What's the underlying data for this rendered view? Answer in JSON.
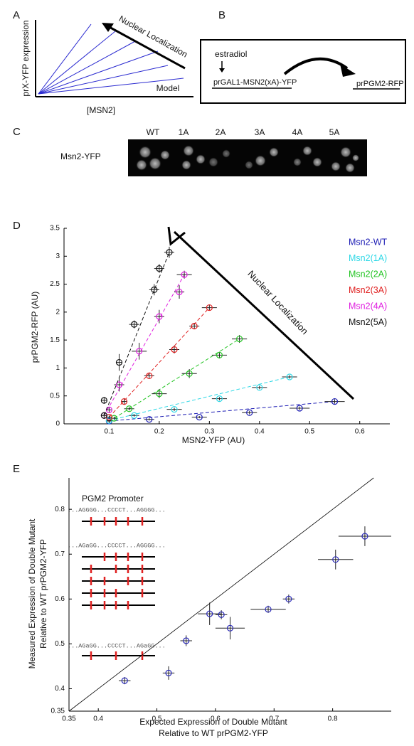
{
  "panel_a": {
    "label": "A",
    "y_label": "prX-YFP expression",
    "x_label": "[MSN2]",
    "arrow_label": "Nuclear Localization",
    "model_label": "Model"
  },
  "panel_b": {
    "label": "B",
    "inducer": "estradiol",
    "construct": "prGAL1-MSN2(xA)-YFP",
    "reporter": "prPGM2-RFP"
  },
  "panel_c": {
    "label": "C",
    "row_label": "Msn2-YFP",
    "columns": [
      "WT",
      "1A",
      "2A",
      "3A",
      "4A",
      "5A"
    ]
  },
  "chart_data": [
    {
      "type": "scatter",
      "panel_label": "D",
      "x_label": "MSN2-YFP (AU)",
      "y_label": "prPGM2-RFP (AU)",
      "annotation": "Nuclear Localization",
      "xlim": [
        0.01,
        0.66
      ],
      "ylim": [
        0,
        3.5
      ],
      "xticks": [
        0.1,
        0.2,
        0.3,
        0.4,
        0.5,
        0.6
      ],
      "yticks": [
        0,
        0.5,
        1,
        1.5,
        2,
        2.5,
        3,
        3.5
      ],
      "legend": "upper right",
      "fit_lines": true,
      "series": [
        {
          "name": "Msn2-WT",
          "color": "#1c1cb4",
          "x": [
            0.1,
            0.18,
            0.28,
            0.38,
            0.48,
            0.55
          ],
          "values": [
            0.05,
            0.08,
            0.12,
            0.2,
            0.28,
            0.4
          ],
          "xerr": [
            0.005,
            0.01,
            0.015,
            0.015,
            0.02,
            0.02
          ],
          "yerr": [
            0.02,
            0.02,
            0.02,
            0.03,
            0.03,
            0.04
          ]
        },
        {
          "name": "Msn2(1A)",
          "color": "#2ed8e6",
          "x": [
            0.1,
            0.15,
            0.23,
            0.32,
            0.4,
            0.46
          ],
          "values": [
            0.06,
            0.15,
            0.26,
            0.45,
            0.65,
            0.84
          ],
          "xerr": [
            0.005,
            0.01,
            0.015,
            0.015,
            0.015,
            0.015
          ],
          "yerr": [
            0.02,
            0.02,
            0.03,
            0.03,
            0.03,
            0.03
          ]
        },
        {
          "name": "Msn2(2A)",
          "color": "#22c422",
          "x": [
            0.11,
            0.14,
            0.2,
            0.26,
            0.32,
            0.36
          ],
          "values": [
            0.1,
            0.27,
            0.54,
            0.9,
            1.23,
            1.52
          ],
          "xerr": [
            0.005,
            0.01,
            0.015,
            0.015,
            0.015,
            0.015
          ],
          "yerr": [
            0.03,
            0.03,
            0.08,
            0.08,
            0.06,
            0.07
          ]
        },
        {
          "name": "Msn2(3A)",
          "color": "#e02020",
          "x": [
            0.1,
            0.13,
            0.18,
            0.23,
            0.27,
            0.3
          ],
          "values": [
            0.12,
            0.4,
            0.86,
            1.33,
            1.75,
            2.08
          ],
          "xerr": [
            0.005,
            0.005,
            0.01,
            0.01,
            0.01,
            0.015
          ],
          "yerr": [
            0.03,
            0.06,
            0.05,
            0.07,
            0.05,
            0.05
          ]
        },
        {
          "name": "Msn2(4A)",
          "color": "#e020e0",
          "x": [
            0.09,
            0.1,
            0.12,
            0.16,
            0.2,
            0.24,
            0.25
          ],
          "values": [
            0.15,
            0.25,
            0.7,
            1.3,
            1.92,
            2.36,
            2.67
          ],
          "xerr": [
            0.005,
            0.005,
            0.01,
            0.015,
            0.01,
            0.01,
            0.015
          ],
          "yerr": [
            0.03,
            0.05,
            0.12,
            0.15,
            0.12,
            0.12,
            0.07
          ]
        },
        {
          "name": "Msn2(5A)",
          "color": "#111111",
          "x": [
            0.09,
            0.09,
            0.12,
            0.15,
            0.19,
            0.2,
            0.22
          ],
          "values": [
            0.15,
            0.42,
            1.1,
            1.78,
            2.4,
            2.78,
            3.07
          ],
          "xerr": [
            0.005,
            0.005,
            0.005,
            0.01,
            0.01,
            0.01,
            0.01
          ],
          "yerr": [
            0.05,
            0.06,
            0.15,
            0.07,
            0.1,
            0.08,
            0.1
          ]
        }
      ]
    },
    {
      "type": "scatter",
      "panel_label": "E",
      "x_label": [
        "Expected Expression of Double Mutant",
        "Relative to WT prPGM2-YFP"
      ],
      "y_label": [
        "Measured Expression of Double Mutant",
        "Relative to WT prPGM2-YFP"
      ],
      "inset": {
        "title": "PGM2 Promoter",
        "sequences": [
          "...AGGGG...CCCCT...AGGGG...",
          "...AGaGG...CCCCT...AGGGG...",
          "...AGaGG...CCCCT...AGaGG..."
        ]
      },
      "xlim": [
        0.35,
        0.9
      ],
      "ylim": [
        0.35,
        0.87
      ],
      "xticks": [
        0.35,
        0.4,
        0.5,
        0.6,
        0.7,
        0.8
      ],
      "yticks": [
        0.35,
        0.4,
        0.5,
        0.6,
        0.7,
        0.8
      ],
      "identity_line": true,
      "series": [
        {
          "color": "#2a2ab8",
          "x": [
            0.445,
            0.52,
            0.55,
            0.59,
            0.61,
            0.625,
            0.69,
            0.725,
            0.805,
            0.855
          ],
          "values": [
            0.418,
            0.435,
            0.507,
            0.567,
            0.565,
            0.535,
            0.577,
            0.6,
            0.688,
            0.74
          ],
          "xerr": [
            0.01,
            0.01,
            0.01,
            0.02,
            0.01,
            0.025,
            0.03,
            0.01,
            0.03,
            0.045
          ],
          "yerr": [
            0.008,
            0.015,
            0.012,
            0.025,
            0.01,
            0.025,
            0.008,
            0.01,
            0.022,
            0.022
          ]
        }
      ]
    }
  ]
}
